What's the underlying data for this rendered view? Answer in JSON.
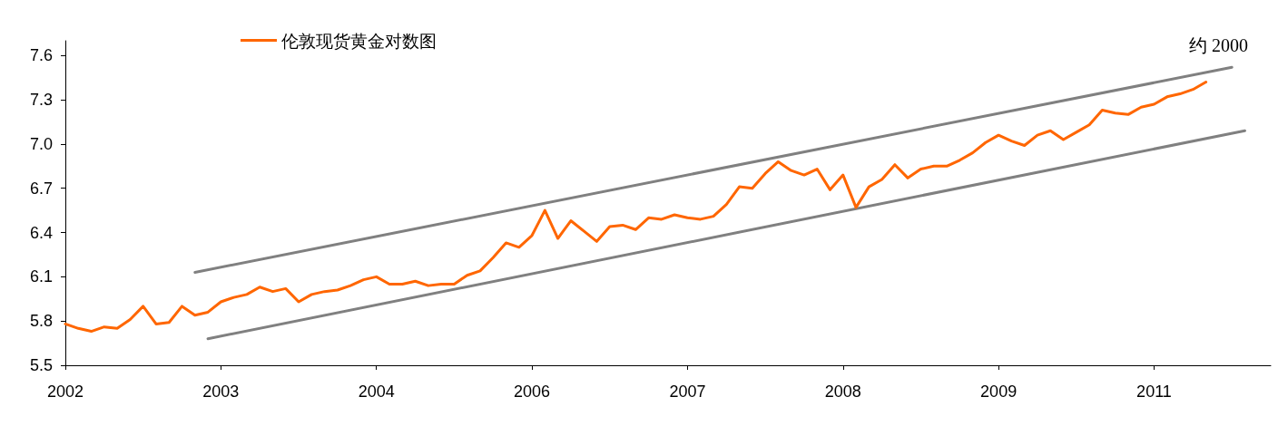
{
  "chart_data": {
    "type": "line",
    "categories": [
      "2002",
      null,
      null,
      null,
      null,
      null,
      null,
      null,
      null,
      null,
      null,
      null,
      "2003",
      null,
      null,
      null,
      null,
      null,
      null,
      null,
      null,
      null,
      null,
      null,
      "2004",
      null,
      null,
      null,
      null,
      null,
      null,
      null,
      null,
      null,
      null,
      null,
      "2006",
      null,
      null,
      null,
      null,
      null,
      null,
      null,
      null,
      null,
      null,
      null,
      "2007",
      null,
      null,
      null,
      null,
      null,
      null,
      null,
      null,
      null,
      null,
      null,
      "2008",
      null,
      null,
      null,
      null,
      null,
      null,
      null,
      null,
      null,
      null,
      null,
      "2009",
      null,
      null,
      null,
      null,
      null,
      null,
      null,
      null,
      null,
      null,
      null,
      "2011",
      null,
      null,
      null,
      null,
      null,
      null,
      null,
      null,
      null
    ],
    "series": [
      {
        "name": "伦敦现货黄金对数图",
        "color": "#ff6600",
        "values": [
          5.78,
          5.75,
          5.73,
          5.76,
          5.75,
          5.81,
          5.9,
          5.78,
          5.79,
          5.9,
          5.84,
          5.86,
          5.93,
          5.96,
          5.98,
          6.03,
          6.0,
          6.02,
          5.93,
          5.98,
          6.0,
          6.01,
          6.04,
          6.08,
          6.1,
          6.05,
          6.05,
          6.07,
          6.04,
          6.05,
          6.05,
          6.11,
          6.14,
          6.23,
          6.33,
          6.3,
          6.38,
          6.55,
          6.36,
          6.48,
          6.41,
          6.34,
          6.44,
          6.45,
          6.42,
          6.5,
          6.49,
          6.52,
          6.5,
          6.49,
          6.51,
          6.59,
          6.71,
          6.7,
          6.8,
          6.88,
          6.82,
          6.79,
          6.83,
          6.69,
          6.79,
          6.57,
          6.71,
          6.76,
          6.86,
          6.77,
          6.83,
          6.85,
          6.85,
          6.89,
          6.94,
          7.01,
          7.06,
          7.02,
          6.99,
          7.06,
          7.09,
          7.03,
          7.08,
          7.13,
          7.23,
          7.21,
          7.2,
          7.25,
          7.27,
          7.32,
          7.34,
          7.37,
          7.42,
          null,
          null,
          null,
          null,
          null
        ]
      },
      {
        "color": "#808080",
        "values": [
          null,
          null,
          null,
          null,
          null,
          null,
          null,
          null,
          null,
          null,
          6.13,
          null,
          null,
          null,
          null,
          null,
          null,
          null,
          null,
          null,
          null,
          null,
          null,
          null,
          null,
          null,
          null,
          null,
          null,
          null,
          null,
          null,
          null,
          null,
          null,
          null,
          null,
          null,
          null,
          null,
          null,
          null,
          null,
          null,
          null,
          null,
          null,
          null,
          null,
          null,
          null,
          null,
          null,
          null,
          null,
          null,
          null,
          null,
          null,
          null,
          null,
          null,
          null,
          null,
          null,
          null,
          null,
          null,
          null,
          null,
          null,
          null,
          null,
          null,
          null,
          null,
          null,
          null,
          null,
          null,
          null,
          null,
          null,
          null,
          null,
          null,
          null,
          null,
          null,
          null,
          7.52,
          null,
          null,
          null
        ]
      },
      {
        "color": "#808080",
        "values": [
          null,
          null,
          null,
          null,
          null,
          null,
          null,
          null,
          null,
          null,
          null,
          5.68,
          null,
          null,
          null,
          null,
          null,
          null,
          null,
          null,
          null,
          null,
          null,
          null,
          null,
          null,
          null,
          null,
          null,
          null,
          null,
          null,
          null,
          null,
          null,
          null,
          null,
          null,
          null,
          null,
          null,
          null,
          null,
          null,
          null,
          null,
          null,
          null,
          null,
          null,
          null,
          null,
          null,
          null,
          null,
          null,
          null,
          null,
          null,
          null,
          null,
          null,
          null,
          null,
          null,
          null,
          null,
          null,
          null,
          null,
          null,
          null,
          null,
          null,
          null,
          null,
          null,
          null,
          null,
          null,
          null,
          null,
          null,
          null,
          null,
          null,
          null,
          null,
          null,
          null,
          null,
          7.09,
          null,
          null
        ]
      }
    ],
    "ylim": [
      5.5,
      7.7
    ],
    "yticks": [
      5.5,
      5.8,
      6.1,
      6.4,
      6.7,
      {
        "value": 7.0,
        "label": "7.0"
      },
      7.3,
      7.6
    ],
    "annotations": [
      "约 2000"
    ],
    "legend": "top left",
    "grid": false,
    "marker": "none",
    "line_style": "solid"
  }
}
